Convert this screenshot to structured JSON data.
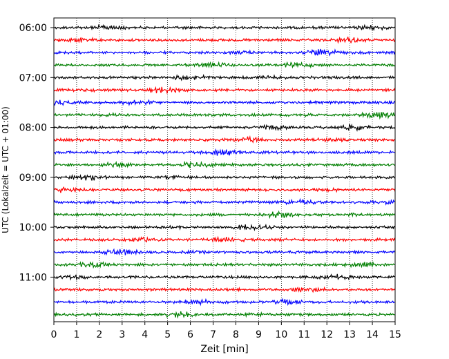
{
  "chart_data": {
    "type": "line",
    "title": "",
    "xlabel": "Zeit  [min]",
    "ylabel": "UTC (Lokalzeit = UTC + 01:00)",
    "xlim": [
      0,
      15
    ],
    "x_ticks": [
      "0",
      "1",
      "2",
      "3",
      "4",
      "5",
      "6",
      "7",
      "8",
      "9",
      "10",
      "11",
      "12",
      "13",
      "14",
      "15"
    ],
    "y_tick_labels": [
      "06:00",
      "07:00",
      "08:00",
      "09:00",
      "10:00",
      "11:00"
    ],
    "trace_start": "06:00",
    "trace_interval_minutes": 15,
    "trace_count": 24,
    "trace_colors": [
      "#000000",
      "#ff0000",
      "#0000ff",
      "#007f00"
    ],
    "grid": "vertical dotted lines at each minute"
  }
}
